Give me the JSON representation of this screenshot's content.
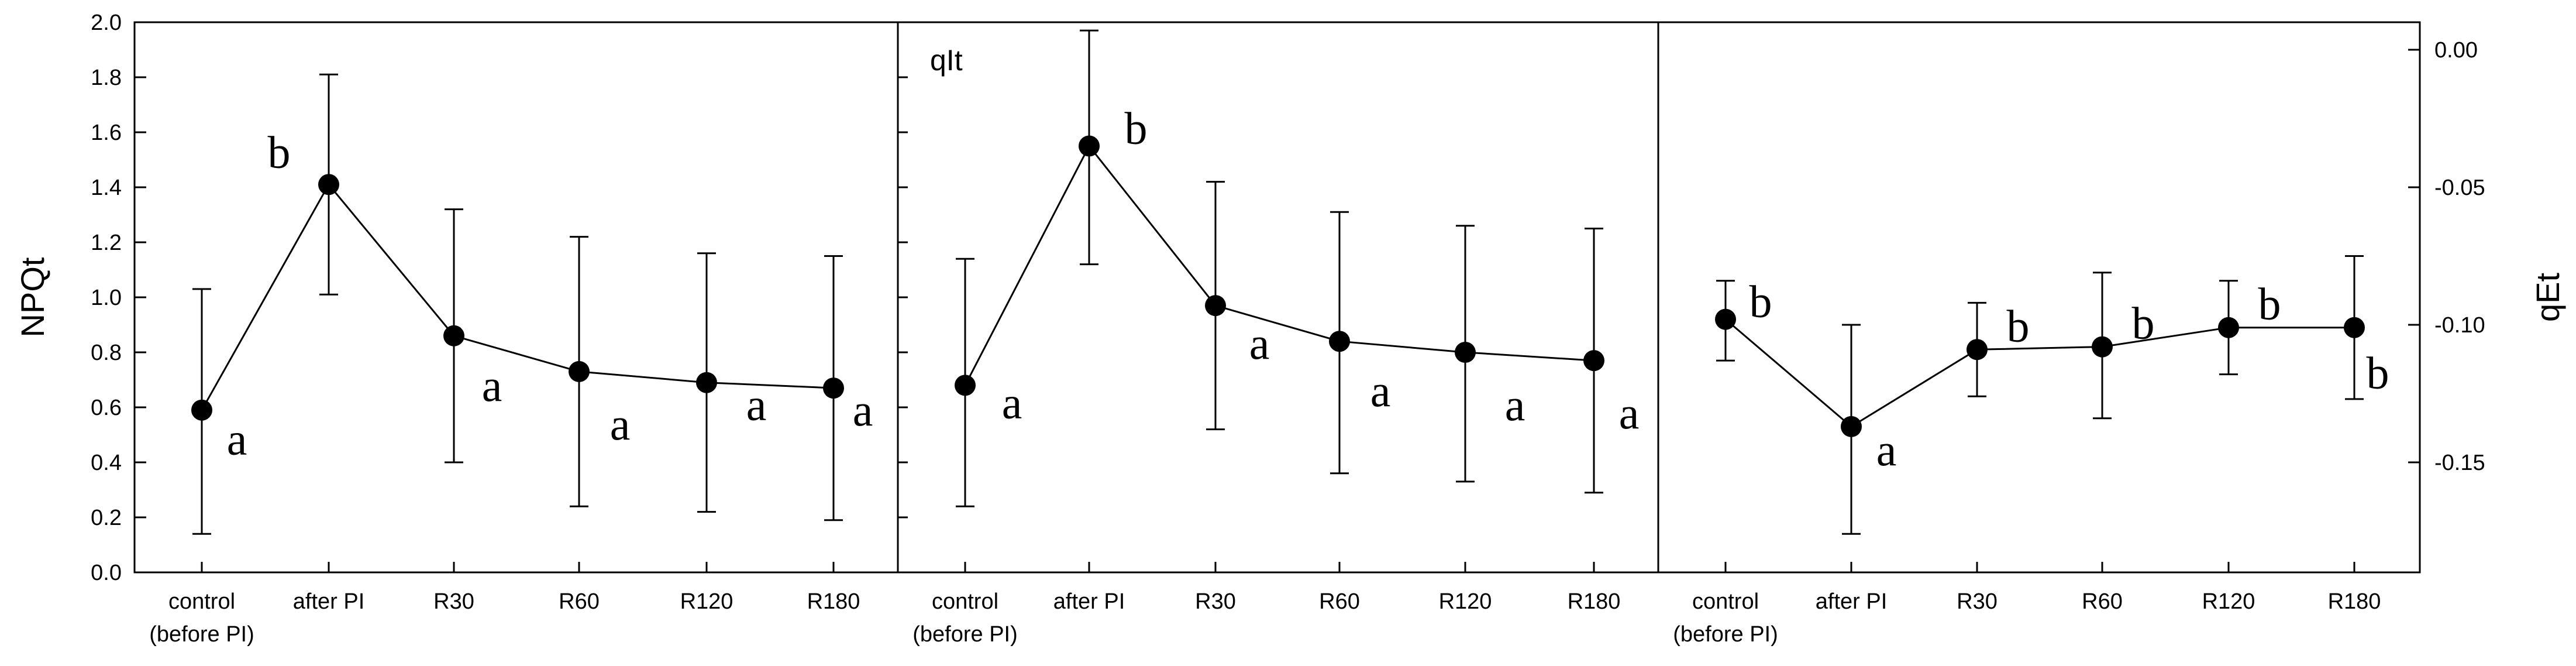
{
  "chart_data": [
    {
      "type": "line",
      "panel": "left",
      "title": "",
      "xlabel": "",
      "ylabel": "NPQt",
      "ylim": [
        0,
        2.0
      ],
      "yticks": [
        "0.0",
        "0.2",
        "0.4",
        "0.6",
        "0.8",
        "1.0",
        "1.2",
        "1.4",
        "1.6",
        "1.8",
        "2.0"
      ],
      "categories": [
        "control\n(before PI)",
        "after PI",
        "R30",
        "R60",
        "R120",
        "R180"
      ],
      "values": [
        0.59,
        1.41,
        0.86,
        0.73,
        0.69,
        0.67
      ],
      "err_low": [
        0.14,
        1.01,
        0.4,
        0.24,
        0.22,
        0.19
      ],
      "err_high": [
        1.03,
        1.81,
        1.32,
        1.22,
        1.16,
        1.15
      ],
      "sig": [
        "a",
        "b",
        "a",
        "a",
        "a",
        "a"
      ]
    },
    {
      "type": "line",
      "panel": "middle",
      "title": "qIt",
      "xlabel": "",
      "ylabel": "",
      "ylim": [
        0,
        2.0
      ],
      "categories": [
        "control\n(before PI)",
        "after PI",
        "R30",
        "R60",
        "R120",
        "R180"
      ],
      "values": [
        0.68,
        1.55,
        0.97,
        0.84,
        0.8,
        0.77
      ],
      "err_low": [
        0.24,
        1.12,
        0.52,
        0.36,
        0.33,
        0.29
      ],
      "err_high": [
        1.14,
        1.97,
        1.42,
        1.31,
        1.26,
        1.25
      ],
      "sig": [
        "a",
        "b",
        "a",
        "a",
        "a",
        "a"
      ]
    },
    {
      "type": "line",
      "panel": "right",
      "title": "",
      "xlabel": "",
      "ylabel": "qEt",
      "ylim": [
        -0.19,
        0.01
      ],
      "yticks": [
        "0.00",
        "-0.05",
        "-0.10",
        "-0.15"
      ],
      "categories": [
        "control\n(before PI)",
        "after PI",
        "R30",
        "R60",
        "R120",
        "R180"
      ],
      "values": [
        -0.098,
        -0.137,
        -0.109,
        -0.108,
        -0.101,
        -0.101
      ],
      "err_low": [
        -0.113,
        -0.176,
        -0.126,
        -0.134,
        -0.118,
        -0.127
      ],
      "err_high": [
        -0.084,
        -0.1,
        -0.092,
        -0.081,
        -0.084,
        -0.075
      ],
      "sig": [
        "b",
        "a",
        "b",
        "b",
        "b",
        "b"
      ]
    }
  ]
}
